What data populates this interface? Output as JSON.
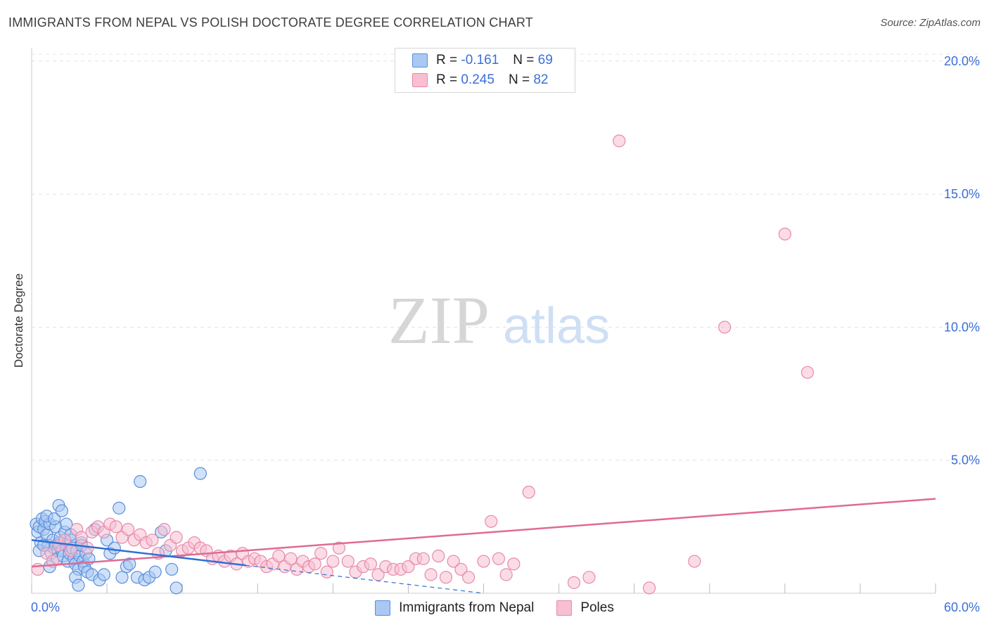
{
  "title": "IMMIGRANTS FROM NEPAL VS POLISH DOCTORATE DEGREE CORRELATION CHART",
  "source": "Source: ZipAtlas.com",
  "watermark": {
    "zip": "ZIP",
    "atlas": "atlas"
  },
  "colors": {
    "blue_fill": "#a9c8f2",
    "blue_stroke": "#5a8fdc",
    "blue_line": "#2d6fd6",
    "pink_fill": "#f7bfd1",
    "pink_stroke": "#e68aa8",
    "pink_line": "#e06a95",
    "value_text": "#3a6fd8",
    "grid": "#e3e3e3"
  },
  "legend": {
    "rows": [
      {
        "r_label": "R =",
        "r_value": "-0.161",
        "n_label": "N =",
        "n_value": "69"
      },
      {
        "r_label": "R =",
        "r_value": "0.245",
        "n_label": "N =",
        "n_value": "82"
      }
    ]
  },
  "chart_data": {
    "type": "scatter",
    "title": "IMMIGRANTS FROM NEPAL VS POLISH DOCTORATE DEGREE CORRELATION CHART",
    "xlabel": "",
    "ylabel": "Doctorate Degree",
    "xlim": [
      0,
      60
    ],
    "ylim": [
      0,
      20.5
    ],
    "x_tick_labels": {
      "min": "0.0%",
      "max": "60.0%"
    },
    "y_ticks": [
      {
        "value": 5,
        "label": "5.0%"
      },
      {
        "value": 10,
        "label": "10.0%"
      },
      {
        "value": 15,
        "label": "15.0%"
      },
      {
        "value": 20,
        "label": "20.0%"
      }
    ],
    "grid": true,
    "legend_position": "top-center",
    "series": [
      {
        "name": "Immigrants from Nepal",
        "color": "blue",
        "r": -0.161,
        "n": 69,
        "trend": {
          "x0": 0,
          "y0": 2.0,
          "x1": 14.2,
          "y1": 1.05,
          "dash_x1": 30.0,
          "dash_y1": 0.0
        },
        "points": [
          [
            0.3,
            2.6
          ],
          [
            0.4,
            2.3
          ],
          [
            0.5,
            2.5
          ],
          [
            0.6,
            1.9
          ],
          [
            0.7,
            2.8
          ],
          [
            0.8,
            2.4
          ],
          [
            0.9,
            2.7
          ],
          [
            1.0,
            2.2
          ],
          [
            1.1,
            1.8
          ],
          [
            1.2,
            2.6
          ],
          [
            1.3,
            1.5
          ],
          [
            1.4,
            2.0
          ],
          [
            1.5,
            1.7
          ],
          [
            1.6,
            2.5
          ],
          [
            1.7,
            1.3
          ],
          [
            1.8,
            1.9
          ],
          [
            1.9,
            2.1
          ],
          [
            2.0,
            1.6
          ],
          [
            2.1,
            1.4
          ],
          [
            2.2,
            2.3
          ],
          [
            2.3,
            1.8
          ],
          [
            2.4,
            1.2
          ],
          [
            2.5,
            1.5
          ],
          [
            2.6,
            2.0
          ],
          [
            2.7,
            1.7
          ],
          [
            2.8,
            1.3
          ],
          [
            2.9,
            1.1
          ],
          [
            3.0,
            1.6
          ],
          [
            3.1,
            0.9
          ],
          [
            3.2,
            1.4
          ],
          [
            3.3,
            1.9
          ],
          [
            3.4,
            1.2
          ],
          [
            3.5,
            1.0
          ],
          [
            3.6,
            1.5
          ],
          [
            3.7,
            0.8
          ],
          [
            3.8,
            1.3
          ],
          [
            0.5,
            1.6
          ],
          [
            0.8,
            1.8
          ],
          [
            1.0,
            2.9
          ],
          [
            1.2,
            1.0
          ],
          [
            1.5,
            2.8
          ],
          [
            1.8,
            3.3
          ],
          [
            2.0,
            3.1
          ],
          [
            2.3,
            2.6
          ],
          [
            2.6,
            2.2
          ],
          [
            2.9,
            0.6
          ],
          [
            3.1,
            0.3
          ],
          [
            3.3,
            1.8
          ],
          [
            4.0,
            0.7
          ],
          [
            4.2,
            2.4
          ],
          [
            4.5,
            0.5
          ],
          [
            4.8,
            0.7
          ],
          [
            5.0,
            2.0
          ],
          [
            5.2,
            1.5
          ],
          [
            5.5,
            1.7
          ],
          [
            5.8,
            3.2
          ],
          [
            6.0,
            0.6
          ],
          [
            6.3,
            1.0
          ],
          [
            6.5,
            1.1
          ],
          [
            7.0,
            0.6
          ],
          [
            7.2,
            4.2
          ],
          [
            7.5,
            0.5
          ],
          [
            7.8,
            0.6
          ],
          [
            8.2,
            0.8
          ],
          [
            8.6,
            2.3
          ],
          [
            8.9,
            1.6
          ],
          [
            9.3,
            0.9
          ],
          [
            9.6,
            0.2
          ],
          [
            11.2,
            4.5
          ]
        ]
      },
      {
        "name": "Poles",
        "color": "pink",
        "r": 0.245,
        "n": 82,
        "trend": {
          "x0": 0,
          "y0": 1.0,
          "x1": 60.0,
          "y1": 3.55
        },
        "points": [
          [
            0.4,
            0.9
          ],
          [
            1.0,
            1.5
          ],
          [
            1.4,
            1.2
          ],
          [
            1.8,
            1.8
          ],
          [
            2.2,
            2.0
          ],
          [
            2.6,
            1.6
          ],
          [
            3.0,
            2.4
          ],
          [
            3.3,
            2.1
          ],
          [
            3.7,
            1.7
          ],
          [
            4.0,
            2.3
          ],
          [
            4.4,
            2.5
          ],
          [
            4.8,
            2.3
          ],
          [
            5.2,
            2.6
          ],
          [
            5.6,
            2.5
          ],
          [
            6.0,
            2.1
          ],
          [
            6.4,
            2.4
          ],
          [
            6.8,
            2.0
          ],
          [
            7.2,
            2.2
          ],
          [
            7.6,
            1.9
          ],
          [
            8.0,
            2.0
          ],
          [
            8.4,
            1.5
          ],
          [
            8.8,
            2.4
          ],
          [
            9.2,
            1.8
          ],
          [
            9.6,
            2.1
          ],
          [
            10.0,
            1.6
          ],
          [
            10.4,
            1.7
          ],
          [
            10.8,
            1.9
          ],
          [
            11.2,
            1.7
          ],
          [
            11.6,
            1.6
          ],
          [
            12.0,
            1.3
          ],
          [
            12.4,
            1.4
          ],
          [
            12.8,
            1.2
          ],
          [
            13.2,
            1.4
          ],
          [
            13.6,
            1.1
          ],
          [
            14.0,
            1.5
          ],
          [
            14.4,
            1.2
          ],
          [
            14.8,
            1.3
          ],
          [
            15.2,
            1.2
          ],
          [
            15.6,
            1.0
          ],
          [
            16.0,
            1.1
          ],
          [
            16.4,
            1.4
          ],
          [
            16.8,
            1.0
          ],
          [
            17.2,
            1.3
          ],
          [
            17.6,
            0.9
          ],
          [
            18.0,
            1.2
          ],
          [
            18.4,
            1.0
          ],
          [
            18.8,
            1.1
          ],
          [
            19.2,
            1.5
          ],
          [
            19.6,
            0.8
          ],
          [
            20.0,
            1.2
          ],
          [
            20.4,
            1.7
          ],
          [
            21.0,
            1.2
          ],
          [
            21.5,
            0.8
          ],
          [
            22.0,
            1.0
          ],
          [
            22.5,
            1.1
          ],
          [
            23.0,
            0.7
          ],
          [
            23.5,
            1.0
          ],
          [
            24.0,
            0.9
          ],
          [
            24.5,
            0.9
          ],
          [
            25.0,
            1.0
          ],
          [
            25.5,
            1.3
          ],
          [
            26.0,
            1.3
          ],
          [
            26.5,
            0.7
          ],
          [
            27.0,
            1.4
          ],
          [
            27.5,
            0.6
          ],
          [
            28.0,
            1.2
          ],
          [
            28.5,
            0.9
          ],
          [
            29.0,
            0.6
          ],
          [
            30.0,
            1.2
          ],
          [
            30.5,
            2.7
          ],
          [
            31.0,
            1.3
          ],
          [
            31.5,
            0.7
          ],
          [
            32.0,
            1.1
          ],
          [
            33.0,
            3.8
          ],
          [
            36.0,
            0.4
          ],
          [
            37.0,
            0.6
          ],
          [
            39.0,
            17.0
          ],
          [
            41.0,
            0.2
          ],
          [
            44.0,
            1.2
          ],
          [
            46.0,
            10.0
          ],
          [
            50.0,
            13.5
          ],
          [
            51.5,
            8.3
          ]
        ]
      }
    ]
  },
  "bottom_legend": {
    "items": [
      {
        "label": "Immigrants from Nepal"
      },
      {
        "label": "Poles"
      }
    ]
  }
}
